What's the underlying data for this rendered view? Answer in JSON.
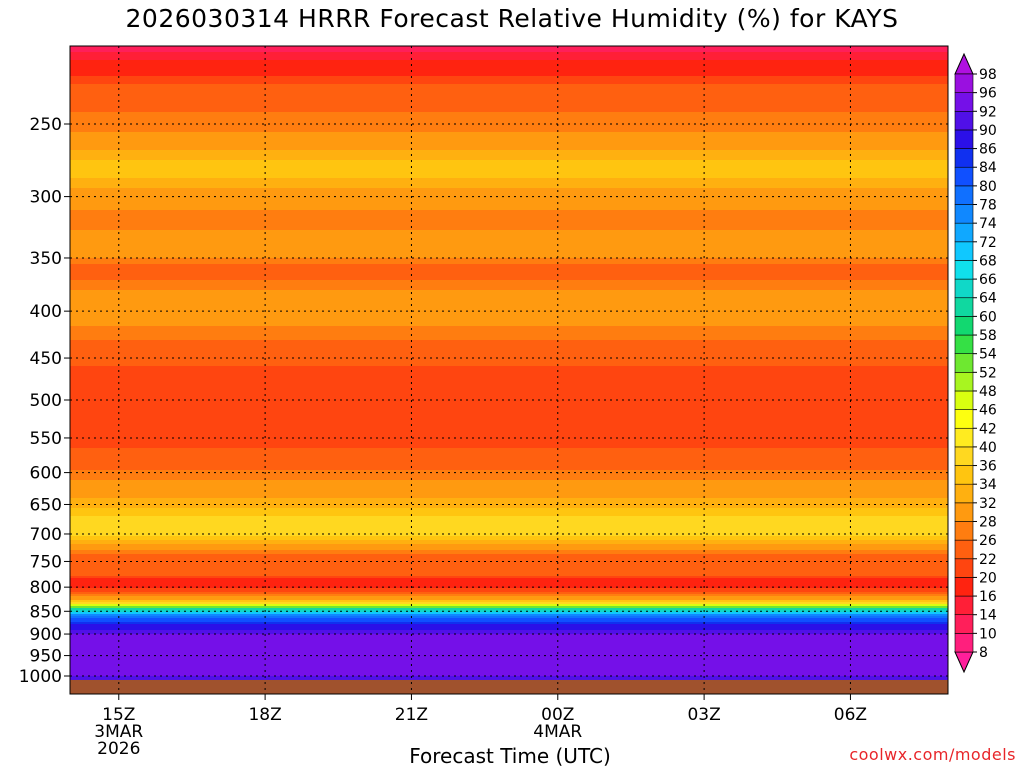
{
  "chart_data": {
    "type": "heatmap",
    "title": "2026030314 HRRR Forecast Relative Humidity (%) for KAYS",
    "xlabel": "Forecast Time (UTC)",
    "ylabel": "",
    "y_scale": "pressure (log-like, decreasing upward)",
    "y_ticks": [
      250,
      300,
      350,
      400,
      450,
      500,
      550,
      600,
      650,
      700,
      750,
      800,
      850,
      900,
      950,
      1000
    ],
    "x_ticks": [
      {
        "hour": 15,
        "label": "15Z",
        "label2": "3MAR",
        "label3": "2026"
      },
      {
        "hour": 18,
        "label": "18Z",
        "label2": "",
        "label3": ""
      },
      {
        "hour": 21,
        "label": "21Z",
        "label2": "",
        "label3": ""
      },
      {
        "hour": 24,
        "label": "00Z",
        "label2": "4MAR",
        "label3": ""
      },
      {
        "hour": 27,
        "label": "03Z",
        "label2": "",
        "label3": ""
      },
      {
        "hour": 30,
        "label": "06Z",
        "label2": "",
        "label3": ""
      }
    ],
    "x_range_hours": [
      14,
      32
    ],
    "y_range_hpa": [
      200,
      1030
    ],
    "grid": true,
    "colorbar": {
      "position": "right",
      "levels": [
        8,
        10,
        14,
        16,
        20,
        22,
        26,
        28,
        32,
        34,
        36,
        40,
        42,
        46,
        48,
        52,
        54,
        58,
        60,
        64,
        66,
        68,
        72,
        74,
        78,
        80,
        84,
        86,
        90,
        92,
        96,
        98
      ],
      "colors": [
        "#ff1f9b",
        "#ff1f7d",
        "#ff1f5a",
        "#ff1f37",
        "#ff2310",
        "#ff4510",
        "#ff6010",
        "#ff7d10",
        "#ff9a10",
        "#ffb010",
        "#ffc510",
        "#ffd820",
        "#ffeb20",
        "#fdff10",
        "#d9ff10",
        "#a8f520",
        "#6ee830",
        "#35e045",
        "#12d870",
        "#10d8a0",
        "#10d8c8",
        "#10e0ec",
        "#10c8ff",
        "#10a8ff",
        "#1088ff",
        "#1070ff",
        "#1050ff",
        "#1030f0",
        "#2b10e8",
        "#5010e8",
        "#7510e8",
        "#9a10e0",
        "#b010e0"
      ]
    },
    "profile": [
      {
        "p": 200,
        "rh": 10
      },
      {
        "p": 230,
        "rh": 24
      },
      {
        "p": 255,
        "rh": 28
      },
      {
        "p": 280,
        "rh": 36
      },
      {
        "p": 300,
        "rh": 30
      },
      {
        "p": 320,
        "rh": 26
      },
      {
        "p": 340,
        "rh": 32
      },
      {
        "p": 360,
        "rh": 24
      },
      {
        "p": 380,
        "rh": 28
      },
      {
        "p": 400,
        "rh": 30
      },
      {
        "p": 430,
        "rh": 26
      },
      {
        "p": 460,
        "rh": 22
      },
      {
        "p": 490,
        "rh": 20
      },
      {
        "p": 520,
        "rh": 22
      },
      {
        "p": 550,
        "rh": 20
      },
      {
        "p": 580,
        "rh": 24
      },
      {
        "p": 610,
        "rh": 28
      },
      {
        "p": 640,
        "rh": 32
      },
      {
        "p": 670,
        "rh": 36
      },
      {
        "p": 690,
        "rh": 40
      },
      {
        "p": 710,
        "rh": 34
      },
      {
        "p": 730,
        "rh": 28
      },
      {
        "p": 750,
        "rh": 22
      },
      {
        "p": 770,
        "rh": 24
      },
      {
        "p": 790,
        "rh": 18
      },
      {
        "p": 810,
        "rh": 22
      },
      {
        "p": 830,
        "rh": 36
      },
      {
        "p": 845,
        "rh": 60
      },
      {
        "p": 860,
        "rh": 78
      },
      {
        "p": 880,
        "rh": 88
      },
      {
        "p": 900,
        "rh": 92
      },
      {
        "p": 930,
        "rh": 94
      },
      {
        "p": 960,
        "rh": 96
      },
      {
        "p": 990,
        "rh": 94
      },
      {
        "p": 1010,
        "rh": 90
      }
    ],
    "ground_pressure_hpa": 1010
  }
}
